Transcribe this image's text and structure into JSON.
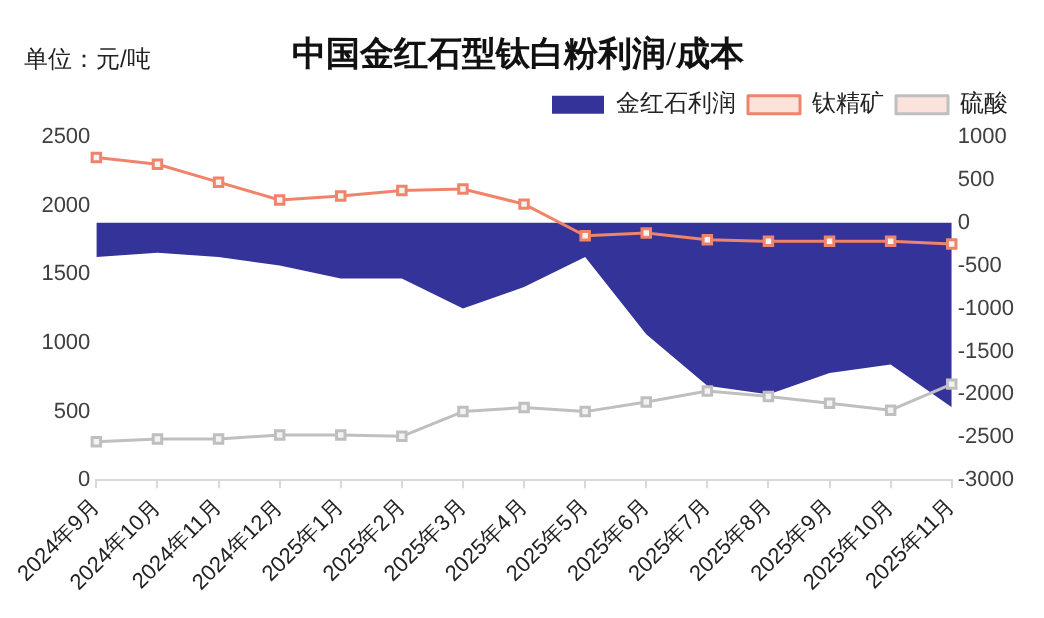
{
  "chart_data": {
    "type": "line",
    "title": "中国金红石型钛白粉利润/成本",
    "annotations": [
      "单位：元/吨"
    ],
    "categories": [
      "2024年9月",
      "2024年10月",
      "2024年11月",
      "2024年12月",
      "2025年1月",
      "2025年2月",
      "2025年3月",
      "2025年4月",
      "2025年5月",
      "2025年6月",
      "2025年7月",
      "2025年8月",
      "2025年9月",
      "2025年10月",
      "2025年11月"
    ],
    "series": [
      {
        "name": "金红石利润",
        "type": "area",
        "axis": "y2",
        "color": "#333399",
        "values": [
          -400,
          -350,
          -400,
          -500,
          -650,
          -650,
          -1000,
          -750,
          -400,
          -1300,
          -1900,
          -2000,
          -1750,
          -1650,
          -2150
        ]
      },
      {
        "name": "钛精矿",
        "color": "#f0846a",
        "marker": "square",
        "values": [
          2350,
          2300,
          2170,
          2040,
          2070,
          2110,
          2120,
          2010,
          1780,
          1800,
          1750,
          1740,
          1740,
          1740,
          1720
        ]
      },
      {
        "name": "硫酸",
        "color": "#bfbfbf",
        "marker": "square",
        "values": [
          280,
          300,
          300,
          330,
          330,
          320,
          500,
          530,
          500,
          570,
          650,
          610,
          560,
          510,
          700
        ]
      }
    ],
    "ylim": [
      0,
      2500
    ],
    "yticks": [
      0,
      500,
      1000,
      1500,
      2000,
      2500
    ],
    "y2lim": [
      -3000,
      1000
    ],
    "y2ticks": [
      -3000,
      -2500,
      -2000,
      -1500,
      -1000,
      -500,
      0,
      500,
      1000
    ],
    "grid": false,
    "legend": "top right"
  }
}
